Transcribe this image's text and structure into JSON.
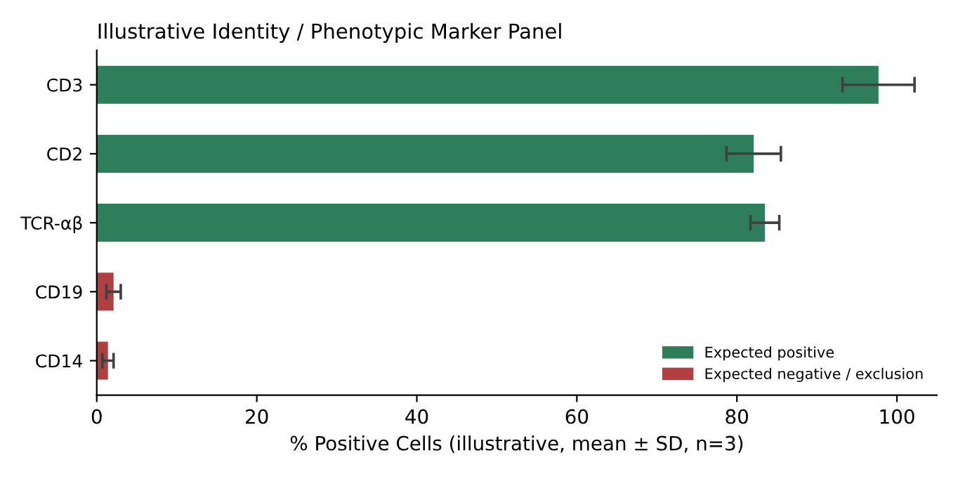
{
  "chart_data": {
    "type": "bar",
    "orientation": "horizontal",
    "title": "Illustrative Identity / Phenotypic Marker Panel",
    "xlabel": "% Positive Cells (illustrative, mean ± SD, n=3)",
    "categories": [
      "CD3",
      "CD2",
      "TCR-αβ",
      "CD19",
      "CD14"
    ],
    "series": [
      {
        "name": "Expected positive",
        "color": "#2e7d5b",
        "values": [
          97.7,
          82.1,
          83.5,
          null,
          null
        ],
        "errors": [
          4.5,
          3.4,
          1.8,
          null,
          null
        ]
      },
      {
        "name": "Expected negative / exclusion",
        "color": "#b04040",
        "values": [
          null,
          null,
          null,
          2.1,
          1.4
        ],
        "errors": [
          null,
          null,
          null,
          0.9,
          0.7
        ]
      }
    ],
    "xlim": [
      0,
      105
    ],
    "xticks": [
      0,
      20,
      40,
      60,
      80,
      100
    ],
    "grid": false,
    "legend": "lower right"
  }
}
